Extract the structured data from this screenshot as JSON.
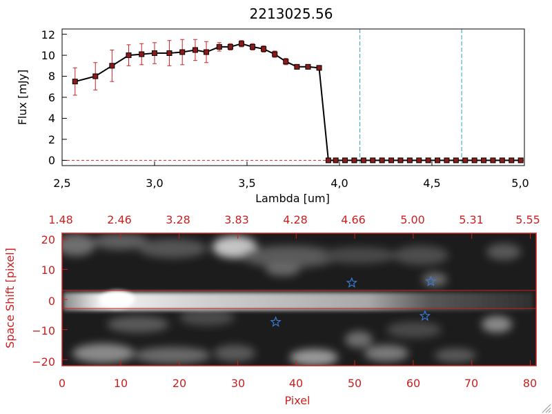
{
  "chart_data": [
    {
      "type": "line",
      "title": "2213025.56",
      "xlabel": "Lambda [um]",
      "ylabel": "Flux [mJy]",
      "xlim": [
        2.5,
        5.0
      ],
      "ylim": [
        -0.5,
        12.5
      ],
      "xticks": [
        2.5,
        3.0,
        3.5,
        4.0,
        4.5,
        5.0
      ],
      "xtick_labels": [
        "2,5",
        "3,0",
        "3,5",
        "4,0",
        "4,5",
        "5,0"
      ],
      "yticks": [
        0,
        2,
        4,
        6,
        8,
        10,
        12
      ],
      "ytick_labels": [
        "0",
        "2",
        "4",
        "6",
        "8",
        "10",
        "12"
      ],
      "series": [
        {
          "name": "flux",
          "x": [
            2.57,
            2.68,
            2.77,
            2.86,
            2.93,
            3.0,
            3.08,
            3.15,
            3.22,
            3.28,
            3.35,
            3.41,
            3.47,
            3.53,
            3.59,
            3.65,
            3.71,
            3.77,
            3.83,
            3.89,
            3.94,
            3.98,
            4.03,
            4.08,
            4.13,
            4.18,
            4.23,
            4.28,
            4.33,
            4.38,
            4.43,
            4.48,
            4.53,
            4.58,
            4.63,
            4.68,
            4.73,
            4.78,
            4.83,
            4.88,
            4.93,
            4.98
          ],
          "y": [
            7.5,
            8.0,
            9.0,
            10.0,
            10.1,
            10.2,
            10.2,
            10.3,
            10.5,
            10.3,
            10.8,
            10.8,
            11.1,
            10.8,
            10.6,
            10.1,
            9.4,
            8.9,
            8.9,
            8.8,
            0.0,
            0.0,
            0.0,
            0.0,
            0.0,
            0.0,
            0.0,
            0.0,
            0.0,
            0.0,
            0.0,
            0.0,
            0.0,
            0.0,
            0.0,
            0.0,
            0.0,
            0.0,
            0.0,
            0.0,
            0.0,
            0.0
          ],
          "yerr": [
            1.3,
            1.3,
            1.5,
            1.0,
            1.0,
            1.0,
            1.2,
            1.2,
            1.0,
            1.0,
            0.4,
            0.3,
            0.3,
            0.3,
            0.3,
            0.3,
            0.3,
            0.2,
            0.2,
            0.2,
            0,
            0,
            0,
            0,
            0,
            0,
            0,
            0,
            0,
            0,
            0,
            0,
            0,
            0,
            0,
            0,
            0,
            0,
            0,
            0,
            0,
            0
          ]
        }
      ],
      "vlines": [
        4.12,
        4.67
      ],
      "hline": 0.0,
      "colors": {
        "line": "#000000",
        "marker": "#8b1a1a",
        "errorbar": "#cc2020",
        "vline": "#2aa0c8",
        "hline": "#cc2020"
      }
    },
    {
      "type": "heatmap",
      "xlabel": "Pixel",
      "ylabel": "Space Shift [pixel]",
      "xlim": [
        0,
        81
      ],
      "ylim": [
        -22,
        22
      ],
      "xticks": [
        0,
        10,
        20,
        30,
        40,
        50,
        60,
        70,
        80
      ],
      "xtick_labels": [
        "0",
        "10",
        "20",
        "30",
        "40",
        "50",
        "60",
        "70",
        "80"
      ],
      "yticks": [
        -20,
        -10,
        0,
        10,
        20
      ],
      "ytick_labels": [
        "−20",
        "−10",
        "0",
        "10",
        "20"
      ],
      "top_axis_labels": [
        "1.48",
        "2.46",
        "3.28",
        "3.83",
        "4.28",
        "4.66",
        "5.00",
        "5.31",
        "5.55"
      ],
      "hlines": [
        3,
        -3
      ],
      "markers": [
        {
          "x": 49.5,
          "y": 5.5
        },
        {
          "x": 63.0,
          "y": 6.0
        },
        {
          "x": 36.5,
          "y": -7.5
        },
        {
          "x": 62.0,
          "y": -5.5
        }
      ],
      "colors": {
        "frame": "#cc2020",
        "marker": "#3a7ad6"
      }
    }
  ]
}
